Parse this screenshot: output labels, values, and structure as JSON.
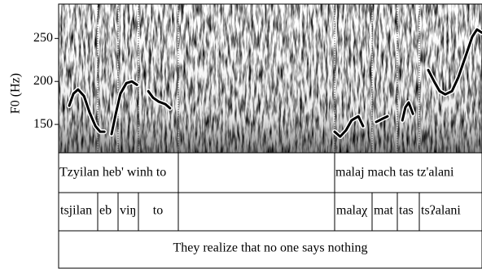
{
  "chart_data": {
    "type": "line",
    "y_label": "F0 (Hz)",
    "ylim": [
      117,
      290
    ],
    "yticks": [
      150,
      200,
      250
    ],
    "xlim": [
      0,
      1
    ],
    "series": [
      {
        "color": "#000000",
        "x": [
          0.025,
          0.035,
          0.046,
          0.06,
          0.073,
          0.087,
          0.098,
          0.108
        ],
        "values": [
          171.7,
          185.8,
          190.6,
          183,
          164,
          148,
          141.5,
          141.5
        ]
      },
      {
        "color": "#000000",
        "x": [
          0.125,
          0.135,
          0.146,
          0.16,
          0.173,
          0.185
        ],
        "values": [
          138.7,
          162.3,
          185.8,
          198,
          200,
          196
        ]
      },
      {
        "color": "#000000",
        "x": [
          0.212,
          0.223,
          0.237,
          0.252,
          0.263
        ],
        "values": [
          188.7,
          181,
          176.4,
          173.6,
          168.9
        ]
      },
      {
        "color": "#000000",
        "x": [
          0.652,
          0.665,
          0.679,
          0.692,
          0.708,
          0.719
        ],
        "values": [
          141.5,
          135.8,
          143.4,
          154.7,
          159.4,
          148
        ]
      },
      {
        "color": "#000000",
        "x": [
          0.75,
          0.765,
          0.777
        ],
        "values": [
          152.8,
          156.6,
          159.4
        ]
      },
      {
        "color": "#000000",
        "x": [
          0.812,
          0.819,
          0.827,
          0.837
        ],
        "values": [
          154.7,
          169.8,
          175.5,
          162.3
        ]
      },
      {
        "color": "#000000",
        "x": [
          0.873,
          0.887,
          0.9,
          0.913,
          0.929,
          0.944,
          0.962,
          0.977,
          0.988,
          1
        ],
        "values": [
          213.2,
          200,
          188.7,
          184.9,
          188.7,
          204.7,
          230.2,
          251.9,
          260.4,
          256.6
        ]
      }
    ],
    "tiers": [
      [
        "Tzyilan heb' winh to",
        "malaj mach tas tz'alani"
      ],
      [
        "tsjilan",
        "eb",
        "viŋ",
        "to",
        "malaχ",
        "mat",
        "tas",
        "tsʔalani"
      ],
      [
        "They realize that no one says nothing"
      ]
    ]
  }
}
